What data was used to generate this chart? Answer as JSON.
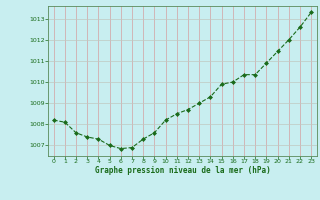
{
  "x": [
    0,
    1,
    2,
    3,
    4,
    5,
    6,
    7,
    8,
    9,
    10,
    11,
    12,
    13,
    14,
    15,
    16,
    17,
    18,
    19,
    20,
    21,
    22,
    23
  ],
  "y": [
    1008.2,
    1008.1,
    1007.6,
    1007.4,
    1007.3,
    1007.0,
    1006.85,
    1006.9,
    1007.3,
    1007.6,
    1008.2,
    1008.5,
    1008.7,
    1009.0,
    1009.3,
    1009.9,
    1010.0,
    1010.35,
    1010.35,
    1010.9,
    1011.45,
    1012.0,
    1012.6,
    1013.3
  ],
  "line_color": "#1a6b1a",
  "marker_color": "#1a6b1a",
  "bg_color": "#c8eef0",
  "plot_bg_color": "#c8eef0",
  "grid_color_v": "#d4a0a0",
  "grid_color_h": "#c0c8c0",
  "xlabel": "Graphe pression niveau de la mer (hPa)",
  "xlabel_color": "#1a6b1a",
  "tick_color": "#1a6b1a",
  "axis_color": "#5a8a5a",
  "ylim": [
    1006.5,
    1013.6
  ],
  "yticks": [
    1007,
    1008,
    1009,
    1010,
    1011,
    1012,
    1013
  ],
  "xlim": [
    -0.5,
    23.5
  ],
  "xticks": [
    0,
    1,
    2,
    3,
    4,
    5,
    6,
    7,
    8,
    9,
    10,
    11,
    12,
    13,
    14,
    15,
    16,
    17,
    18,
    19,
    20,
    21,
    22,
    23
  ]
}
